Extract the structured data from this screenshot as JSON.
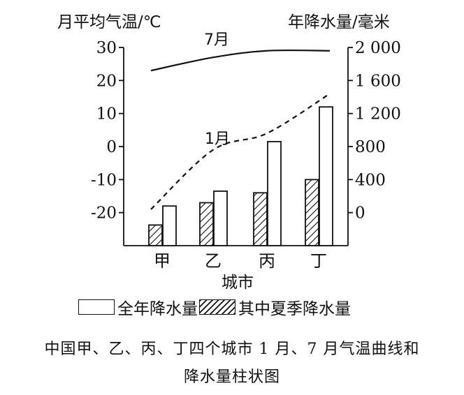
{
  "chart_data": {
    "type": "bar+line",
    "categories": [
      "甲",
      "乙",
      "丙",
      "丁"
    ],
    "xlabel": "城市",
    "ylabel_left": "月平均气温/℃",
    "ylabel_right": "年降水量/毫米",
    "ylim_left": [
      -30,
      30
    ],
    "ylim_right": [
      -400,
      2000
    ],
    "left_ticks": [
      30,
      20,
      10,
      0,
      -10,
      -20
    ],
    "left_tick_labels": [
      "30",
      "20",
      "10",
      "0",
      "-10",
      "-20"
    ],
    "right_ticks": [
      2000,
      1600,
      1200,
      800,
      400,
      0
    ],
    "right_tick_labels": [
      "2 000",
      "1 600",
      "1 200",
      "800",
      "400",
      "0"
    ],
    "line_series": [
      {
        "name": "7月",
        "axis": "left",
        "style": "solid",
        "values": [
          23,
          27,
          29,
          29
        ]
      },
      {
        "name": "1月",
        "axis": "left",
        "style": "dashed",
        "values": [
          -19,
          -1,
          4,
          16
        ]
      }
    ],
    "bar_series": [
      {
        "name": "全年降水量",
        "axis": "right",
        "fill": "white",
        "values": [
          80,
          260,
          860,
          1280
        ]
      },
      {
        "name": "其中夏季降水量",
        "axis": "right",
        "fill": "hatch",
        "values": [
          -150,
          120,
          240,
          400
        ]
      }
    ],
    "legend": [
      "全年降水量",
      "其中夏季降水量"
    ],
    "caption_lines": [
      "中国甲、乙、丙、丁四个城市 1 月、7 月气温曲线和",
      "降水量柱状图"
    ]
  }
}
